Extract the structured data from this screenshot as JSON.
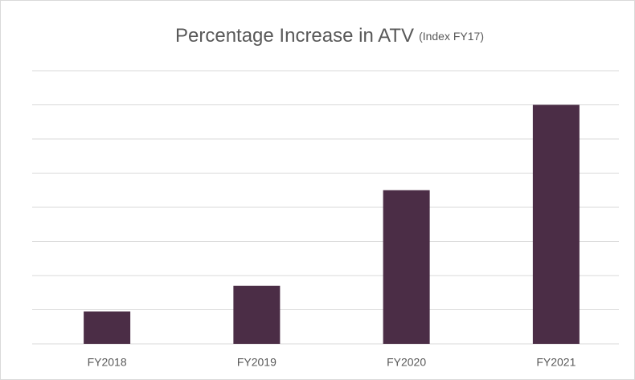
{
  "chart_data": {
    "type": "bar",
    "title": "Percentage Increase in ATV",
    "subtitle": "(Index FY17)",
    "categories": [
      "FY2018",
      "FY2019",
      "FY2020",
      "FY2021"
    ],
    "values": [
      0.95,
      1.7,
      4.5,
      7.0
    ],
    "color": "#4b2d46",
    "ylim": [
      0,
      8
    ],
    "yticks": [
      0,
      1,
      2,
      3,
      4,
      5,
      6,
      7,
      8
    ],
    "grid": true
  }
}
